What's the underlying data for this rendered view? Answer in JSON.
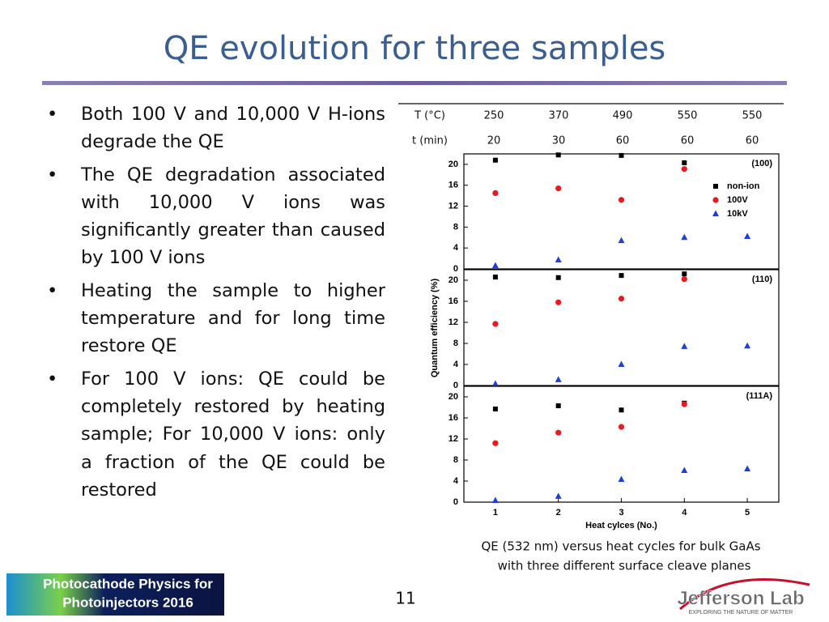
{
  "title": "QE evolution for three samples",
  "bullets": [
    "Both 100 V and 10,000 V H-ions degrade the QE",
    "The QE degradation associated with 10,000 V ions was significantly greater than caused by 100 V ions",
    "Heating the sample to higher temperature and for long time restore QE",
    "For 100 V ions: QE could be completely restored by heating sample; For 10,000 V ions: only a fraction of the QE could be restored"
  ],
  "conditions": {
    "rows": [
      [
        "T (°C)",
        "250",
        "370",
        "490",
        "550",
        "550"
      ],
      [
        "t (min)",
        "20",
        "30",
        "60",
        "60",
        "60"
      ]
    ]
  },
  "chart_data": [
    {
      "type": "scatter",
      "annotation": "(100)",
      "ylabel": "Quantum efficiency (%)",
      "x": [
        1,
        2,
        3,
        4,
        5
      ],
      "xlim": [
        0.5,
        5.5
      ],
      "ylim": [
        0,
        22
      ],
      "yticks": [
        0,
        4,
        8,
        12,
        16,
        20
      ],
      "legend": "upper right",
      "series": [
        {
          "name": "non-ion",
          "color": "#000000",
          "marker": "square",
          "values": [
            20.8,
            21.8,
            21.7,
            20.3,
            null
          ]
        },
        {
          "name": "100V",
          "color": "#e8191f",
          "marker": "circle",
          "values": [
            14.5,
            15.4,
            13.2,
            19.1,
            null
          ]
        },
        {
          "name": "10kV",
          "color": "#1f3fd8",
          "marker": "triangle",
          "values": [
            0.6,
            1.7,
            5.4,
            6.0,
            6.2
          ]
        }
      ]
    },
    {
      "type": "scatter",
      "annotation": "(110)",
      "x": [
        1,
        2,
        3,
        4,
        5
      ],
      "xlim": [
        0.5,
        5.5
      ],
      "ylim": [
        0,
        22
      ],
      "yticks": [
        0,
        4,
        8,
        12,
        16,
        20
      ],
      "series": [
        {
          "color": "#000000",
          "marker": "square",
          "values": [
            20.6,
            20.5,
            20.9,
            21.2,
            null
          ]
        },
        {
          "color": "#e8191f",
          "marker": "circle",
          "values": [
            11.7,
            15.8,
            16.5,
            20.2,
            null
          ]
        },
        {
          "color": "#1f3fd8",
          "marker": "triangle",
          "values": [
            0.3,
            1.1,
            4.0,
            7.4,
            7.5
          ]
        }
      ]
    },
    {
      "type": "scatter",
      "annotation": "(111A)",
      "xlabel": "Heat cylces (No.)",
      "x": [
        1,
        2,
        3,
        4,
        5
      ],
      "xlim": [
        0.5,
        5.5
      ],
      "xticks": [
        1,
        2,
        3,
        4,
        5
      ],
      "ylim": [
        0,
        22
      ],
      "yticks": [
        0,
        4,
        8,
        12,
        16,
        20
      ],
      "series": [
        {
          "color": "#000000",
          "marker": "square",
          "values": [
            17.7,
            18.3,
            17.5,
            18.8,
            null
          ]
        },
        {
          "color": "#e8191f",
          "marker": "circle",
          "values": [
            11.2,
            13.2,
            14.3,
            18.6,
            null
          ]
        },
        {
          "color": "#1f3fd8",
          "marker": "triangle",
          "values": [
            0.3,
            1.1,
            4.3,
            6.0,
            6.3
          ]
        }
      ]
    }
  ],
  "caption_lines": [
    "QE (532 nm) versus heat cycles for bulk GaAs",
    "with three different surface cleave planes"
  ],
  "footer": {
    "logo_left_lines": [
      "Photocathode Physics for",
      "Photoinjectors 2016"
    ],
    "page_number": "11",
    "logo_right": "Jefferson Lab",
    "logo_right_tagline": "EXPLORING THE NATURE OF MATTER"
  }
}
